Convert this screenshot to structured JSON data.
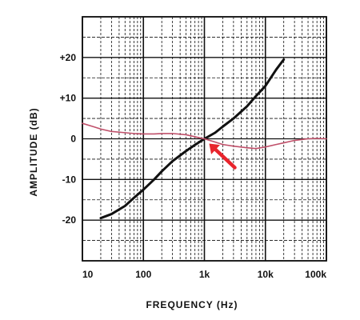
{
  "chart_data": {
    "type": "line",
    "xlabel": "FREQUENCY (Hz)",
    "ylabel": "AMPLITUDE (dB)",
    "x_scale": "log",
    "xlim": [
      10,
      100000
    ],
    "ylim": [
      -30,
      30
    ],
    "grid": true,
    "x_tick_labels": [
      {
        "value": 10,
        "label": "10"
      },
      {
        "value": 100,
        "label": "100"
      },
      {
        "value": 1000,
        "label": "1k"
      },
      {
        "value": 10000,
        "label": "10k"
      },
      {
        "value": 100000,
        "label": "100k"
      }
    ],
    "y_tick_labels": [
      {
        "value": 20,
        "label": "+20"
      },
      {
        "value": 10,
        "label": "+10"
      },
      {
        "value": 0,
        "label": "0"
      },
      {
        "value": -10,
        "label": "-10"
      },
      {
        "value": -20,
        "label": "-20"
      }
    ],
    "series": [
      {
        "color": "#111111",
        "points": [
          [
            20,
            -19.5
          ],
          [
            30,
            -18.5
          ],
          [
            50,
            -16.5
          ],
          [
            70,
            -14.5
          ],
          [
            100,
            -12.5
          ],
          [
            150,
            -10
          ],
          [
            200,
            -8
          ],
          [
            300,
            -5.5
          ],
          [
            500,
            -3
          ],
          [
            700,
            -1.5
          ],
          [
            1000,
            0
          ],
          [
            1500,
            1.5
          ],
          [
            2000,
            3
          ],
          [
            3000,
            5
          ],
          [
            5000,
            8
          ],
          [
            7000,
            10.5
          ],
          [
            10000,
            13
          ],
          [
            15000,
            17
          ],
          [
            20000,
            19.5
          ]
        ]
      },
      {
        "color": "#c0506a",
        "points": [
          [
            10,
            3.8
          ],
          [
            15,
            3
          ],
          [
            20,
            2.4
          ],
          [
            30,
            1.8
          ],
          [
            50,
            1.5
          ],
          [
            70,
            1.3
          ],
          [
            100,
            1.2
          ],
          [
            150,
            1.2
          ],
          [
            200,
            1.3
          ],
          [
            300,
            1.3
          ],
          [
            500,
            1
          ],
          [
            700,
            0.5
          ],
          [
            1000,
            0
          ],
          [
            1500,
            -0.8
          ],
          [
            2000,
            -1.4
          ],
          [
            3000,
            -1.8
          ],
          [
            5000,
            -2.2
          ],
          [
            7000,
            -2.4
          ],
          [
            10000,
            -2
          ],
          [
            15000,
            -1.4
          ],
          [
            20000,
            -1
          ],
          [
            30000,
            -0.4
          ],
          [
            50000,
            0
          ],
          [
            70000,
            0.1
          ],
          [
            100000,
            0
          ]
        ]
      }
    ],
    "annotations": [
      {
        "type": "arrow",
        "color": "#e8242c",
        "points_to": [
          1000,
          0
        ]
      }
    ]
  }
}
